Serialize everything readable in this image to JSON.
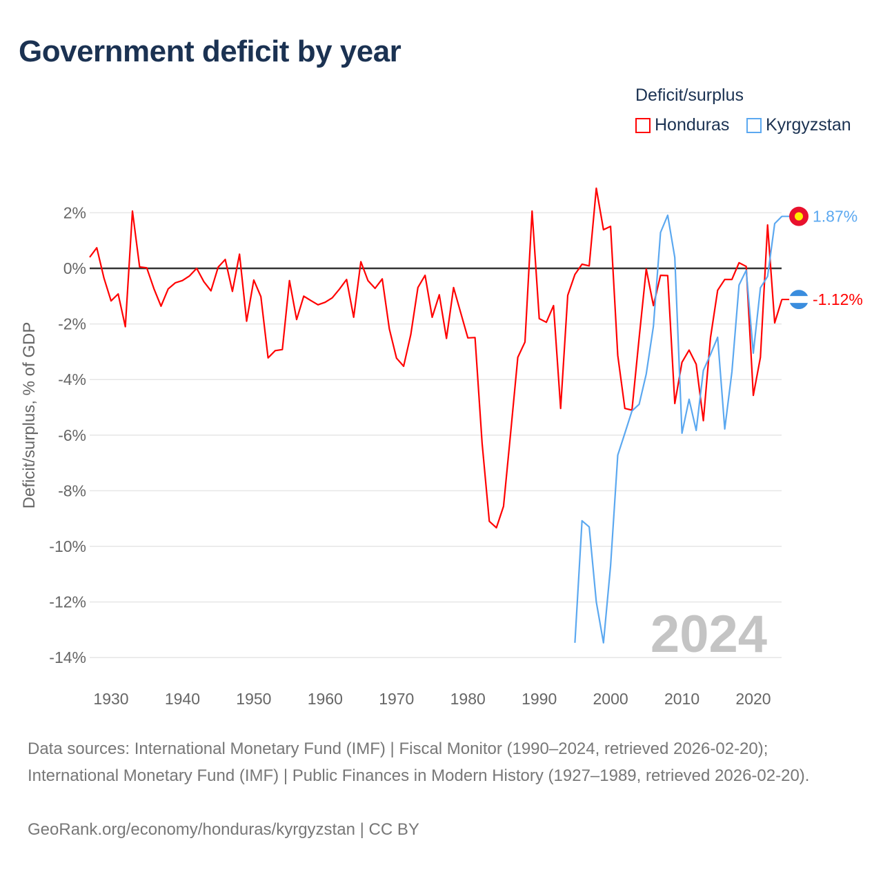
{
  "title": "Government deficit by year",
  "legend": {
    "title": "Deficit/surplus",
    "items": [
      {
        "name": "Honduras",
        "color": "#ff0000"
      },
      {
        "name": "Kyrgyzstan",
        "color": "#5ba8f0"
      }
    ]
  },
  "year_watermark": "2024",
  "chart_data": {
    "type": "line",
    "title": "Government deficit by year",
    "ylabel": "Deficit/surplus, % of GDP",
    "xlabel": "",
    "xlim": [
      1927,
      2024
    ],
    "ylim": [
      -15,
      3
    ],
    "xticks": [
      1930,
      1940,
      1950,
      1960,
      1970,
      1980,
      1990,
      2000,
      2010,
      2020
    ],
    "yticks": [
      2,
      0,
      -2,
      -4,
      -6,
      -8,
      -10,
      -12,
      -14
    ],
    "ytick_labels": [
      "2%",
      "0%",
      "-2%",
      "-4%",
      "-6%",
      "-8%",
      "-10%",
      "-12%",
      "-14%"
    ],
    "grid": true,
    "legend_position": "top-right",
    "series": [
      {
        "name": "Honduras",
        "color": "#ff0000",
        "end_label": "-1.12%",
        "start_year": 1927,
        "values": [
          0.4,
          0.74,
          -0.35,
          -1.17,
          -0.92,
          -2.1,
          2.06,
          0.05,
          0.02,
          -0.73,
          -1.36,
          -0.74,
          -0.52,
          -0.44,
          -0.27,
          0.0,
          -0.48,
          -0.81,
          0.04,
          0.32,
          -0.83,
          0.51,
          -1.9,
          -0.42,
          -1.02,
          -3.22,
          -2.96,
          -2.92,
          -0.44,
          -1.84,
          -1.0,
          -1.16,
          -1.31,
          -1.22,
          -1.06,
          -0.75,
          -0.4,
          -1.76,
          0.24,
          -0.44,
          -0.72,
          -0.38,
          -2.18,
          -3.23,
          -3.52,
          -2.38,
          -0.69,
          -0.25,
          -1.76,
          -0.95,
          -2.52,
          -0.69,
          -1.6,
          -2.5,
          -2.49,
          -6.3,
          -9.1,
          -9.33,
          -8.56,
          -5.9,
          -3.2,
          -2.65,
          2.06,
          -1.81,
          -1.94,
          -1.34,
          -5.04,
          -0.97,
          -0.22,
          0.15,
          0.09,
          2.88,
          1.39,
          1.51,
          -3.13,
          -5.04,
          -5.1,
          -2.5,
          -0.02,
          -1.34,
          -0.25,
          -0.26,
          -4.86,
          -3.38,
          -2.94,
          -3.45,
          -5.48,
          -2.5,
          -0.79,
          -0.4,
          -0.4,
          0.2,
          0.07,
          -4.57,
          -3.2,
          1.56,
          -1.96,
          -1.12
        ]
      },
      {
        "name": "Kyrgyzstan",
        "color": "#5ba8f0",
        "end_label": "1.87%",
        "start_year": 1995,
        "values": [
          -13.47,
          -9.08,
          -9.3,
          -12.0,
          -13.47,
          -10.7,
          -6.72,
          -5.93,
          -5.13,
          -4.89,
          -3.8,
          -2.08,
          1.29,
          1.91,
          0.39,
          -5.93,
          -4.71,
          -5.83,
          -3.67,
          -3.1,
          -2.48,
          -5.78,
          -3.72,
          -0.6,
          -0.07,
          -3.05,
          -0.7,
          -0.29,
          1.61,
          1.87
        ]
      }
    ]
  },
  "footer": {
    "sources": "Data sources: International Monetary Fund (IMF) | Fiscal Monitor (1990–2024, retrieved 2026-02-20); International Monetary Fund (IMF) | Public Finances in Modern History (1927–1989, retrieved 2026-02-20).",
    "credit": "GeoRank.org/economy/honduras/kyrgyzstan | CC BY"
  }
}
